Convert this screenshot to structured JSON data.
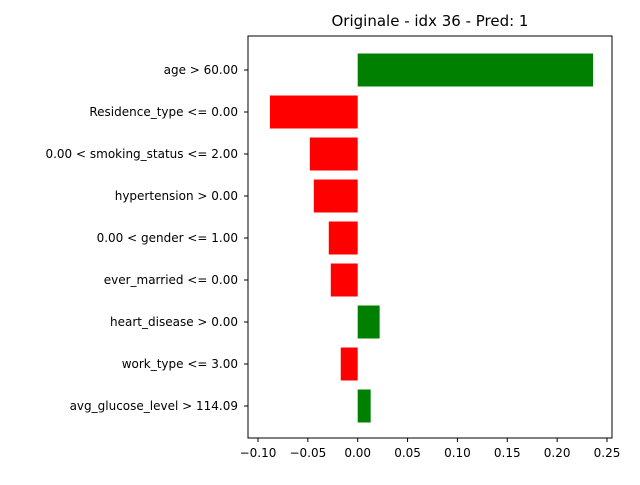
{
  "chart_data": {
    "type": "bar",
    "orientation": "horizontal",
    "title": "Originale - idx 36 - Pred: 1",
    "xlabel": "",
    "ylabel": "",
    "xlim": [
      -0.11,
      0.255
    ],
    "xticks": [
      -0.1,
      -0.05,
      0.0,
      0.05,
      0.1,
      0.15,
      0.2,
      0.25
    ],
    "xtick_labels": [
      "−0.10",
      "−0.05",
      "0.00",
      "0.05",
      "0.10",
      "0.15",
      "0.20",
      "0.25"
    ],
    "grid": false,
    "legend": "none",
    "positive_color": "#008000",
    "negative_color": "#ff0000",
    "categories": [
      "age > 60.00",
      "Residence_type <= 0.00",
      "0.00 < smoking_status <= 2.00",
      "hypertension > 0.00",
      "0.00 < gender <= 1.00",
      "ever_married <= 0.00",
      "heart_disease > 0.00",
      "work_type <= 3.00",
      "avg_glucose_level > 114.09"
    ],
    "values": [
      0.236,
      -0.088,
      -0.048,
      -0.044,
      -0.029,
      -0.027,
      0.022,
      -0.017,
      0.013
    ]
  }
}
